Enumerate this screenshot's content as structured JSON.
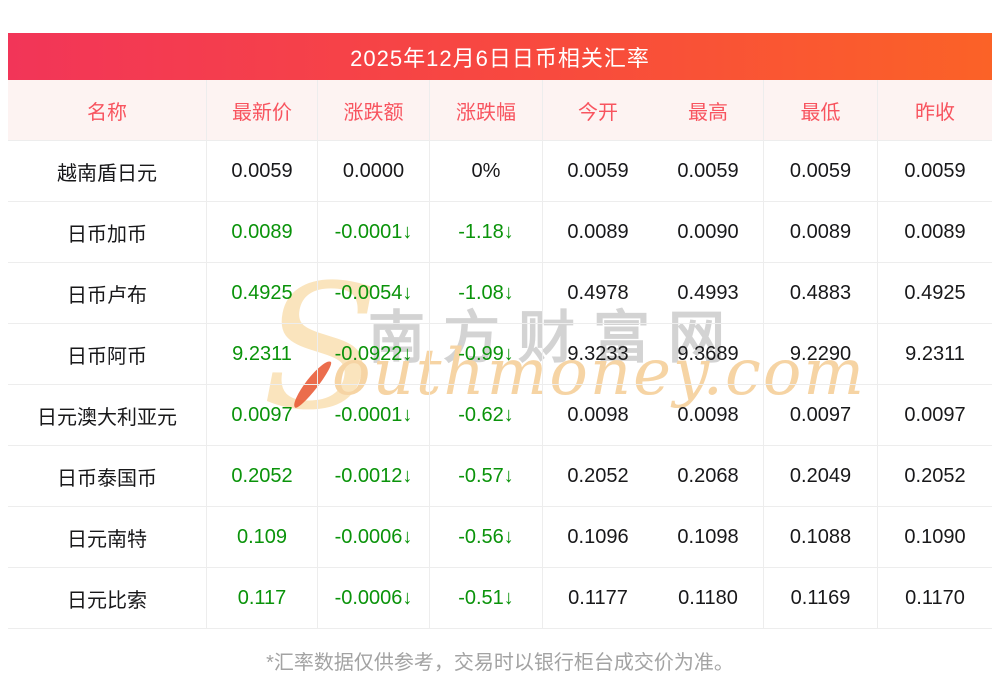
{
  "title": "2025年12月6日日币相关汇率",
  "chart_data": {
    "type": "table",
    "title": "2025年12月6日日币相关汇率",
    "columns": [
      "名称",
      "最新价",
      "涨跌额",
      "涨跌幅",
      "今开",
      "最高",
      "最低",
      "昨收"
    ],
    "rows": [
      {
        "name": "越南盾日元",
        "latest": "0.0059",
        "change": "0.0000",
        "pct": "0%",
        "open": "0.0059",
        "high": "0.0059",
        "low": "0.0059",
        "prev": "0.0059",
        "trend": "flat"
      },
      {
        "name": "日币加币",
        "latest": "0.0089",
        "change": "-0.0001↓",
        "pct": "-1.18↓",
        "open": "0.0089",
        "high": "0.0090",
        "low": "0.0089",
        "prev": "0.0089",
        "trend": "down"
      },
      {
        "name": "日币卢布",
        "latest": "0.4925",
        "change": "-0.0054↓",
        "pct": "-1.08↓",
        "open": "0.4978",
        "high": "0.4993",
        "low": "0.4883",
        "prev": "0.4925",
        "trend": "down"
      },
      {
        "name": "日币阿币",
        "latest": "9.2311",
        "change": "-0.0922↓",
        "pct": "-0.99↓",
        "open": "9.3233",
        "high": "9.3689",
        "low": "9.2290",
        "prev": "9.2311",
        "trend": "down"
      },
      {
        "name": "日元澳大利亚元",
        "latest": "0.0097",
        "change": "-0.0001↓",
        "pct": "-0.62↓",
        "open": "0.0098",
        "high": "0.0098",
        "low": "0.0097",
        "prev": "0.0097",
        "trend": "down"
      },
      {
        "name": "日币泰国币",
        "latest": "0.2052",
        "change": "-0.0012↓",
        "pct": "-0.57↓",
        "open": "0.2052",
        "high": "0.2068",
        "low": "0.2049",
        "prev": "0.2052",
        "trend": "down"
      },
      {
        "name": "日元南特",
        "latest": "0.109",
        "change": "-0.0006↓",
        "pct": "-0.56↓",
        "open": "0.1096",
        "high": "0.1098",
        "low": "0.1088",
        "prev": "0.1090",
        "trend": "down"
      },
      {
        "name": "日元比索",
        "latest": "0.117",
        "change": "-0.0006↓",
        "pct": "-0.51↓",
        "open": "0.1177",
        "high": "0.1180",
        "low": "0.1169",
        "prev": "0.1170",
        "trend": "down"
      }
    ],
    "legend_note": "green = decline, black = unchanged"
  },
  "watermark": {
    "logo_s": "S",
    "cn": "南方财富网",
    "en": "outhmoney.com"
  },
  "footnote": "*汇率数据仅供参考，交易时以银行柜台成交价为准。",
  "colors": {
    "title_gradient_start": "#f23558",
    "title_gradient_end": "#fb6227",
    "header_bg": "#fdf3f2",
    "header_text": "#f8545f",
    "down_green": "#0a930a",
    "body_text": "#18181a",
    "grid_line": "#ededed",
    "footnote_text": "#a3a3a3",
    "watermark_cream": "#fae4bd",
    "watermark_gray": "#d3d3d3",
    "watermark_orange": "#f6d4a4"
  }
}
